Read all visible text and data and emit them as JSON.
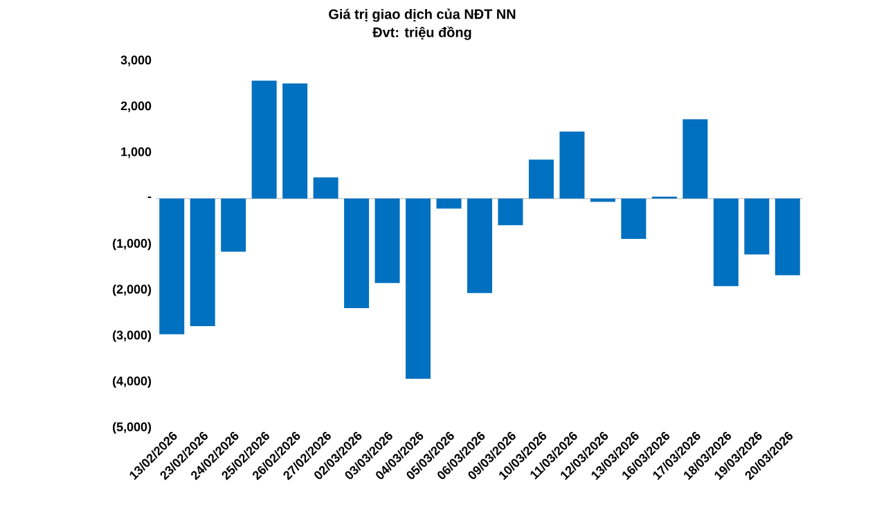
{
  "chart_data": {
    "type": "bar",
    "title": "Giá trị giao dịch của NĐT NN",
    "subtitle": "Đvt: triệu đồng",
    "categories": [
      "13/02/2026",
      "23/02/2026",
      "24/02/2026",
      "25/02/2026",
      "26/02/2026",
      "27/02/2026",
      "02/03/2026",
      "03/03/2026",
      "04/03/2026",
      "05/03/2026",
      "06/03/2026",
      "09/03/2026",
      "10/03/2026",
      "11/03/2026",
      "12/03/2026",
      "13/03/2026",
      "16/03/2026",
      "17/03/2026",
      "18/03/2026",
      "19/03/2026",
      "20/03/2026"
    ],
    "values": [
      -2960,
      -2780,
      -1160,
      2570,
      2510,
      460,
      -2390,
      -1840,
      -3930,
      -220,
      -2060,
      -580,
      850,
      1460,
      -70,
      -880,
      40,
      1730,
      -1910,
      -1220,
      -1670
    ],
    "color": "#0070c0",
    "ylim": [
      -5000,
      3000
    ],
    "yticks": [
      {
        "value": 3000,
        "label": "3,000"
      },
      {
        "value": 2000,
        "label": "2,000"
      },
      {
        "value": 1000,
        "label": "1,000"
      },
      {
        "value": 0,
        "label": "-"
      },
      {
        "value": -1000,
        "label": "(1,000)"
      },
      {
        "value": -2000,
        "label": "(2,000)"
      },
      {
        "value": -3000,
        "label": "(3,000)"
      },
      {
        "value": -4000,
        "label": "(4,000)"
      },
      {
        "value": -5000,
        "label": "(5,000)"
      }
    ]
  }
}
